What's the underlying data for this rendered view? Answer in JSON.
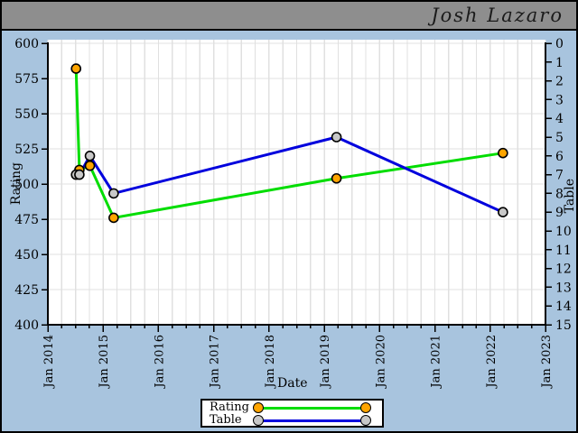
{
  "window": {
    "title": "Josh Lazaro"
  },
  "colors": {
    "background": "#a8c4de",
    "titlebar": "#8e8e8e",
    "plot_bg": "#ffffff",
    "gridline": "#e0e0e0",
    "axis": "#000000",
    "rating_line": "#00dd00",
    "rating_marker": "#ffa500",
    "table_line": "#0000dd",
    "table_marker": "#c8c8c8"
  },
  "chart_data": {
    "type": "line",
    "title": "Josh Lazaro",
    "xlabel": "Date",
    "ylabel_left": "Rating",
    "ylabel_right": "Table",
    "x_range_years": [
      2014,
      2023
    ],
    "x_ticks": [
      "Jan 2014",
      "Jan 2015",
      "Jan 2016",
      "Jan 2017",
      "Jan 2018",
      "Jan 2019",
      "Jan 2020",
      "Jan 2021",
      "Jan 2022",
      "Jan 2023"
    ],
    "x_minor_tick_interval_years": 0.25,
    "left_axis": {
      "range": [
        400,
        600
      ],
      "ticks": [
        600,
        575,
        550,
        525,
        500,
        475,
        450,
        425,
        400
      ]
    },
    "right_axis": {
      "range_top_to_bottom": [
        0,
        15
      ],
      "ticks": [
        0,
        1,
        2,
        3,
        4,
        5,
        6,
        7,
        8,
        9,
        10,
        11,
        12,
        13,
        14,
        15
      ]
    },
    "grid": "on",
    "event_dates": [
      "Jul 2014",
      "Aug 2014",
      "Oct 2014",
      "Mar 2015",
      "Mar 2019",
      "Mar 2022"
    ],
    "series": [
      {
        "name": "Rating",
        "axis": "left",
        "line_color": "#00dd00",
        "marker_fill": "#ffa500",
        "x": [
          2014.51,
          2014.57,
          2014.76,
          2015.19,
          2019.22,
          2022.23
        ],
        "values": [
          582,
          510,
          513,
          476,
          504,
          522
        ]
      },
      {
        "name": "Table",
        "axis": "right",
        "line_color": "#0000dd",
        "marker_fill": "#c8c8c8",
        "x": [
          2014.51,
          2014.57,
          2014.76,
          2015.19,
          2019.22,
          2022.23
        ],
        "values": [
          7,
          7,
          6,
          8,
          5,
          9
        ]
      }
    ],
    "legend": {
      "position": "bottom-center",
      "entries": [
        {
          "label": "Rating"
        },
        {
          "label": "Table"
        }
      ]
    }
  }
}
